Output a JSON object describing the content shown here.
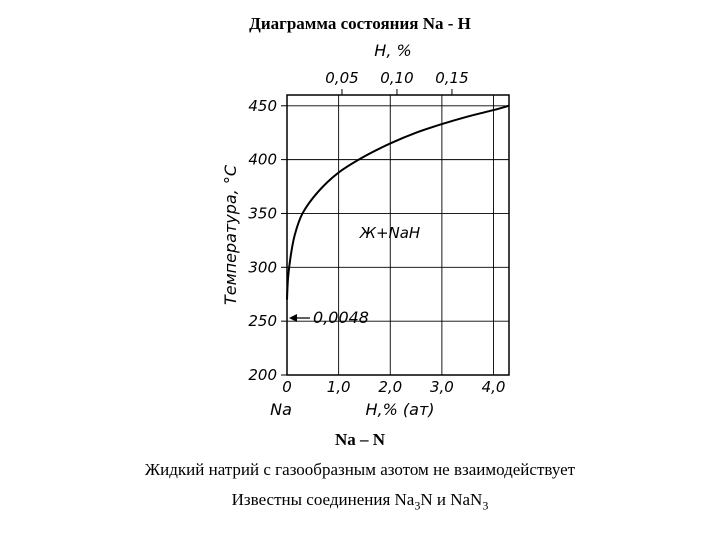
{
  "title": "Диаграмма состояния Na - H",
  "chart_data": {
    "type": "line",
    "ylabel": "Температура, °С",
    "xlabel_bottom": "H,% (ат)",
    "x_origin_label": "Na",
    "xlabel_top": "H, %",
    "y_ticks": [
      "200",
      "250",
      "300",
      "350",
      "400",
      "450"
    ],
    "x_ticks_bottom": [
      "0",
      "1,0",
      "2,0",
      "3,0",
      "4,0"
    ],
    "x_ticks_top": [
      "0,05",
      "0,10",
      "0,15"
    ],
    "ylim": [
      200,
      460
    ],
    "xlim": [
      0,
      4.3
    ],
    "series": [
      {
        "points": [
          [
            0,
            270
          ],
          [
            0.02,
            290
          ],
          [
            0.07,
            310
          ],
          [
            0.15,
            330
          ],
          [
            0.3,
            350
          ],
          [
            0.6,
            370
          ],
          [
            1.0,
            388
          ],
          [
            1.5,
            403
          ],
          [
            2.0,
            415
          ],
          [
            2.5,
            425
          ],
          [
            3.0,
            433
          ],
          [
            3.5,
            440
          ],
          [
            4.0,
            446
          ],
          [
            4.3,
            450
          ]
        ]
      }
    ],
    "annotations": {
      "region_label": "Ж+NaH",
      "arrow_label": "0,0048",
      "arrow_y": 250
    }
  },
  "captions": {
    "line1": "Na – N",
    "line2": "Жидкий натрий с газообразным азотом не взаимодействует",
    "line3_prefix": "Известны соединения Na",
    "line3_sub1": "3",
    "line3_mid": "N и NaN",
    "line3_sub2": "3"
  }
}
